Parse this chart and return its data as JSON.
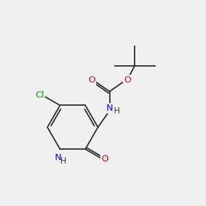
{
  "bg_color": "#f0f0f0",
  "bond_color": "#333333",
  "atom_colors": {
    "N": "#0000ff",
    "O": "#ff0000",
    "Cl": "#00aa00",
    "C": "#333333",
    "H": "#333333"
  },
  "font_size": 8.5,
  "bond_width": 1.4
}
